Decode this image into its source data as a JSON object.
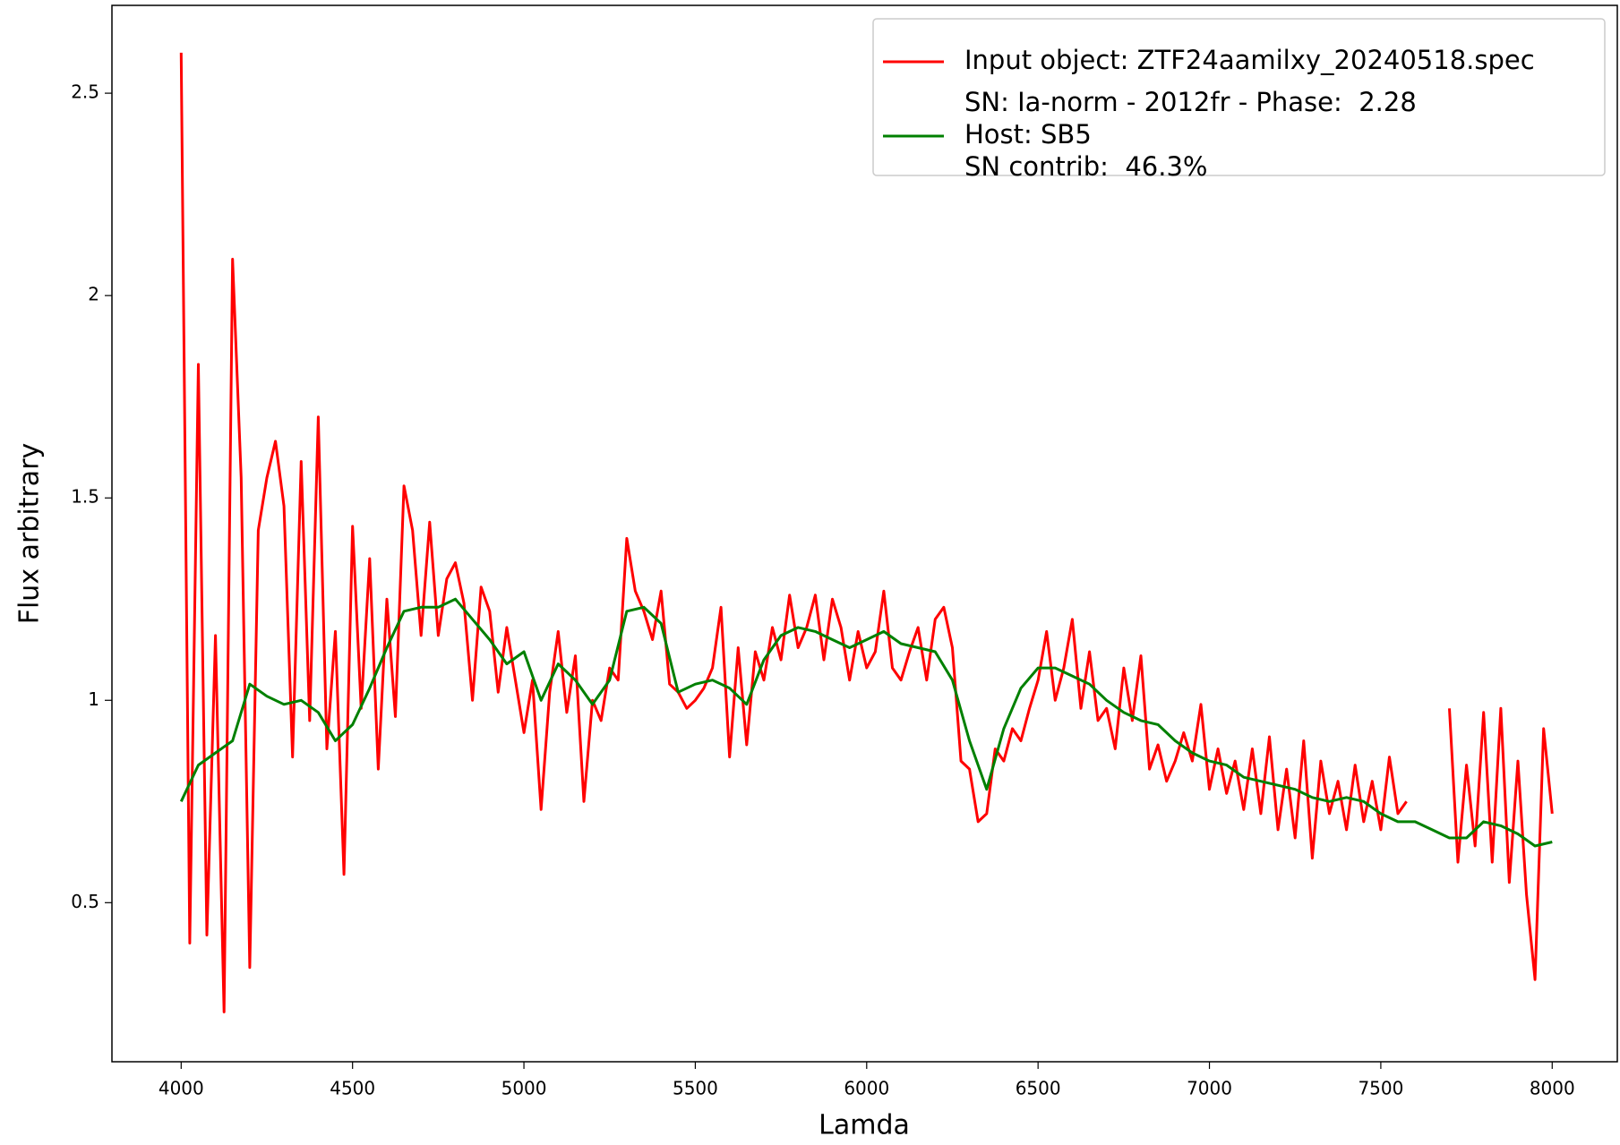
{
  "chart_data": {
    "type": "line",
    "xlabel": "Lamda",
    "ylabel": "Flux arbitrary",
    "xlim": [
      3798,
      8190
    ],
    "ylim": [
      0.107,
      2.717
    ],
    "xticks": [
      4000,
      4500,
      5000,
      5500,
      6000,
      6500,
      7000,
      7500,
      8000
    ],
    "yticks": [
      0.5,
      1.0,
      1.5,
      2.0,
      2.5
    ],
    "legend_position": "upper right",
    "annotations": [
      "SN: Ia-norm - 2012fr - Phase:  2.28",
      "SN contrib:  46.3%"
    ],
    "series": [
      {
        "name": "Input object: ZTF24aamilxy_20240518.spec",
        "color": "#ff0000",
        "x": [
          4000,
          4025,
          4050,
          4075,
          4100,
          4125,
          4150,
          4175,
          4200,
          4225,
          4250,
          4275,
          4300,
          4325,
          4350,
          4375,
          4400,
          4425,
          4450,
          4475,
          4500,
          4525,
          4550,
          4575,
          4600,
          4625,
          4650,
          4675,
          4700,
          4725,
          4750,
          4775,
          4800,
          4825,
          4850,
          4875,
          4900,
          4925,
          4950,
          4975,
          5000,
          5025,
          5050,
          5075,
          5100,
          5125,
          5150,
          5175,
          5200,
          5225,
          5250,
          5275,
          5300,
          5325,
          5350,
          5375,
          5400,
          5425,
          5450,
          5475,
          5500,
          5525,
          5550,
          5575,
          5600,
          5625,
          5650,
          5675,
          5700,
          5725,
          5750,
          5775,
          5800,
          5825,
          5850,
          5875,
          5900,
          5925,
          5950,
          5975,
          6000,
          6025,
          6050,
          6075,
          6100,
          6125,
          6150,
          6175,
          6200,
          6225,
          6250,
          6275,
          6300,
          6325,
          6350,
          6375,
          6400,
          6425,
          6450,
          6475,
          6500,
          6525,
          6550,
          6575,
          6600,
          6625,
          6650,
          6675,
          6700,
          6725,
          6750,
          6775,
          6800,
          6825,
          6850,
          6875,
          6900,
          6925,
          6950,
          6975,
          7000,
          7025,
          7050,
          7075,
          7100,
          7125,
          7150,
          7175,
          7200,
          7225,
          7250,
          7275,
          7300,
          7325,
          7350,
          7375,
          7400,
          7425,
          7450,
          7475,
          7500,
          7525,
          7550,
          7575,
          7600,
          7625,
          7650,
          7675,
          7700,
          7725,
          7750,
          7775,
          7800,
          7825,
          7850,
          7875,
          7900,
          7925,
          7950,
          7975,
          8000
        ],
        "values": [
          2.6,
          0.4,
          1.83,
          0.42,
          1.16,
          0.23,
          2.09,
          1.55,
          0.34,
          1.42,
          1.55,
          1.64,
          1.48,
          0.86,
          1.59,
          0.95,
          1.7,
          0.88,
          1.17,
          0.57,
          1.43,
          0.98,
          1.35,
          0.83,
          1.25,
          0.96,
          1.53,
          1.42,
          1.16,
          1.44,
          1.16,
          1.3,
          1.34,
          1.24,
          1.0,
          1.28,
          1.22,
          1.02,
          1.18,
          1.05,
          0.92,
          1.05,
          0.73,
          1.02,
          1.17,
          0.97,
          1.11,
          0.75,
          1.0,
          0.95,
          1.08,
          1.05,
          1.4,
          1.27,
          1.22,
          1.15,
          1.27,
          1.04,
          1.02,
          0.98,
          1.0,
          1.03,
          1.08,
          1.23,
          0.86,
          1.13,
          0.89,
          1.12,
          1.05,
          1.18,
          1.1,
          1.26,
          1.13,
          1.18,
          1.26,
          1.1,
          1.25,
          1.18,
          1.05,
          1.17,
          1.08,
          1.12,
          1.27,
          1.08,
          1.05,
          1.12,
          1.18,
          1.05,
          1.2,
          1.23,
          1.13,
          0.85,
          0.83,
          0.7,
          0.72,
          0.88,
          0.85,
          0.93,
          0.9,
          0.98,
          1.05,
          1.17,
          1.0,
          1.08,
          1.2,
          0.98,
          1.12,
          0.95,
          0.98,
          0.88,
          1.08,
          0.95,
          1.11,
          0.83,
          0.89,
          0.8,
          0.85,
          0.92,
          0.85,
          0.99,
          0.78,
          0.88,
          0.77,
          0.85,
          0.73,
          0.88,
          0.72,
          0.91,
          0.68,
          0.83,
          0.66,
          0.9,
          0.61,
          0.85,
          0.72,
          0.8,
          0.68,
          0.84,
          0.7,
          0.8,
          0.68,
          0.86,
          0.72,
          0.75,
          null,
          null,
          null,
          null,
          0.98,
          0.6,
          0.84,
          0.64,
          0.97,
          0.6,
          0.98,
          0.55,
          0.85,
          0.52,
          0.31,
          0.93,
          0.72
        ]
      },
      {
        "name": "Host: SB5",
        "color": "#008000",
        "x": [
          4000,
          4050,
          4100,
          4150,
          4200,
          4250,
          4300,
          4350,
          4400,
          4450,
          4500,
          4550,
          4600,
          4650,
          4700,
          4750,
          4800,
          4850,
          4900,
          4950,
          5000,
          5050,
          5100,
          5150,
          5200,
          5250,
          5300,
          5350,
          5400,
          5450,
          5500,
          5550,
          5600,
          5650,
          5700,
          5750,
          5800,
          5850,
          5900,
          5950,
          6000,
          6050,
          6100,
          6150,
          6200,
          6250,
          6300,
          6350,
          6400,
          6450,
          6500,
          6550,
          6600,
          6650,
          6700,
          6750,
          6800,
          6850,
          6900,
          6950,
          7000,
          7050,
          7100,
          7150,
          7200,
          7250,
          7300,
          7350,
          7400,
          7450,
          7500,
          7550,
          7600,
          7650,
          7700,
          7750,
          7800,
          7850,
          7900,
          7950,
          8000
        ],
        "values": [
          0.75,
          0.84,
          0.87,
          0.9,
          1.04,
          1.01,
          0.99,
          1.0,
          0.97,
          0.9,
          0.94,
          1.03,
          1.13,
          1.22,
          1.23,
          1.23,
          1.25,
          1.2,
          1.15,
          1.09,
          1.12,
          1.0,
          1.09,
          1.05,
          0.99,
          1.05,
          1.22,
          1.23,
          1.19,
          1.02,
          1.04,
          1.05,
          1.03,
          0.99,
          1.1,
          1.16,
          1.18,
          1.17,
          1.15,
          1.13,
          1.15,
          1.17,
          1.14,
          1.13,
          1.12,
          1.05,
          0.9,
          0.78,
          0.93,
          1.03,
          1.08,
          1.08,
          1.06,
          1.04,
          1.0,
          0.97,
          0.95,
          0.94,
          0.9,
          0.87,
          0.85,
          0.84,
          0.81,
          0.8,
          0.79,
          0.78,
          0.76,
          0.75,
          0.76,
          0.75,
          0.72,
          0.7,
          0.7,
          0.68,
          0.66,
          0.66,
          0.7,
          0.69,
          0.67,
          0.64,
          0.65
        ]
      }
    ]
  }
}
